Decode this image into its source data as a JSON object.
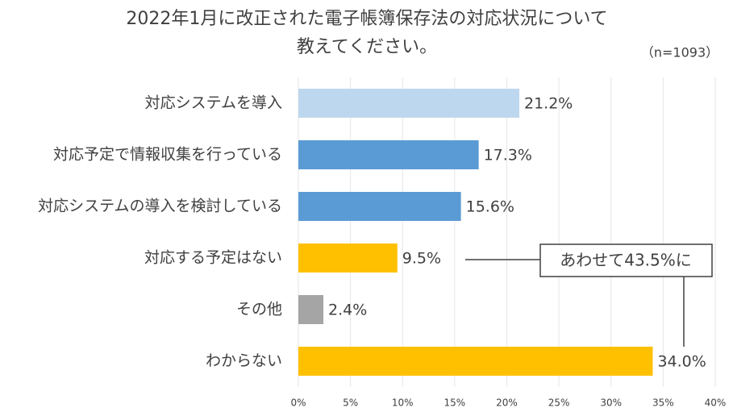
{
  "chart_data": {
    "type": "hbar",
    "title": [
      "2022年1月に改正された電子帳簿保存法の対応状況について",
      "教えてください。"
    ],
    "subtitle": "（n=1093）",
    "annotation": "あわせて43.5%に",
    "categories": [
      "対応システムを導入",
      "対応予定で情報収集を行っている",
      "対応システムの導入を検討している",
      "対応する予定はない",
      "その他",
      "わからない"
    ],
    "values": [
      21.2,
      17.3,
      15.6,
      9.5,
      2.4,
      34.0
    ],
    "value_labels": [
      "21.2%",
      "17.3%",
      "15.6%",
      "9.5%",
      "2.4%",
      "34.0%"
    ],
    "colors": [
      "#bdd7ee",
      "#5b9bd5",
      "#5b9bd5",
      "#ffc000",
      "#a5a5a5",
      "#ffc000"
    ],
    "xlim": [
      0,
      40
    ],
    "xticks": [
      {
        "value": 0,
        "label": "0%"
      },
      {
        "value": 5,
        "label": "5%"
      },
      {
        "value": 10,
        "label": "10%"
      },
      {
        "value": 15,
        "label": "15%"
      },
      {
        "value": 20,
        "label": "20%"
      },
      {
        "value": 25,
        "label": "25%"
      },
      {
        "value": 30,
        "label": "30%"
      },
      {
        "value": 35,
        "label": "35%"
      },
      {
        "value": 40,
        "label": "40%"
      }
    ],
    "grid": true
  }
}
